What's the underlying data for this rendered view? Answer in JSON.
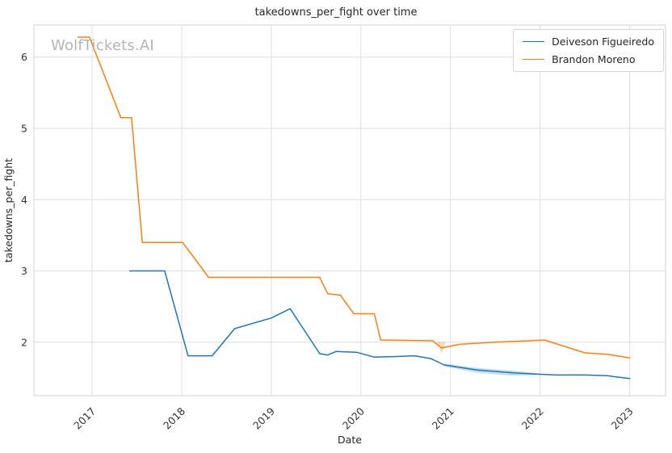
{
  "watermark": "WolfTickets.AI",
  "chart_data": {
    "type": "line",
    "title": "takedowns_per_fight over time",
    "xlabel": "Date",
    "ylabel": "takedowns_per_fight",
    "xlim": [
      2016.35,
      2023.4
    ],
    "ylim": [
      1.25,
      6.45
    ],
    "xticks": [
      2017,
      2018,
      2019,
      2020,
      2021,
      2022,
      2023
    ],
    "yticks": [
      2,
      3,
      4,
      5,
      6
    ],
    "grid": true,
    "legend_position": "top-right",
    "series": [
      {
        "name": "Deiveson Figueiredo",
        "color": "#1f77b4",
        "x": [
          2017.42,
          2017.81,
          2018.07,
          2018.34,
          2018.59,
          2019.0,
          2019.21,
          2019.54,
          2019.63,
          2019.72,
          2019.95,
          2020.15,
          2020.4,
          2020.6,
          2020.78,
          2020.93,
          2021.3,
          2021.7,
          2022.0,
          2022.18,
          2022.5,
          2022.75,
          2023.0
        ],
        "y": [
          3.0,
          3.0,
          1.81,
          1.81,
          2.19,
          2.34,
          2.47,
          1.84,
          1.82,
          1.87,
          1.86,
          1.79,
          1.8,
          1.81,
          1.77,
          1.68,
          1.61,
          1.57,
          1.55,
          1.54,
          1.54,
          1.53,
          1.49
        ]
      },
      {
        "name": "Brandon Moreno",
        "color": "#ff7f0e",
        "x": [
          2016.84,
          2016.97,
          2017.32,
          2017.44,
          2017.56,
          2018.01,
          2018.3,
          2019.54,
          2019.63,
          2019.77,
          2019.92,
          2020.15,
          2020.22,
          2020.8,
          2020.9,
          2021.1,
          2021.5,
          2022.05,
          2022.5,
          2022.75,
          2023.0
        ],
        "y": [
          6.28,
          6.28,
          5.15,
          5.15,
          3.4,
          3.4,
          2.91,
          2.91,
          2.68,
          2.66,
          2.4,
          2.4,
          2.03,
          2.02,
          1.92,
          1.97,
          2.0,
          2.03,
          1.85,
          1.83,
          1.78
        ]
      }
    ],
    "bands": [
      {
        "series": "Deiveson Figueiredo",
        "color": "#1f77b4",
        "opacity": 0.25,
        "x": [
          2020.93,
          2021.3,
          2021.7,
          2022.0
        ],
        "lower": [
          1.66,
          1.57,
          1.53,
          1.54
        ],
        "upper": [
          1.7,
          1.64,
          1.6,
          1.56
        ]
      },
      {
        "series": "Brandon Moreno",
        "color": "#ff7f0e",
        "opacity": 0.3,
        "x": [
          2020.86,
          2020.9,
          2020.94
        ],
        "lower": [
          1.98,
          1.84,
          1.97
        ],
        "upper": [
          2.02,
          1.99,
          2.01
        ]
      }
    ]
  }
}
